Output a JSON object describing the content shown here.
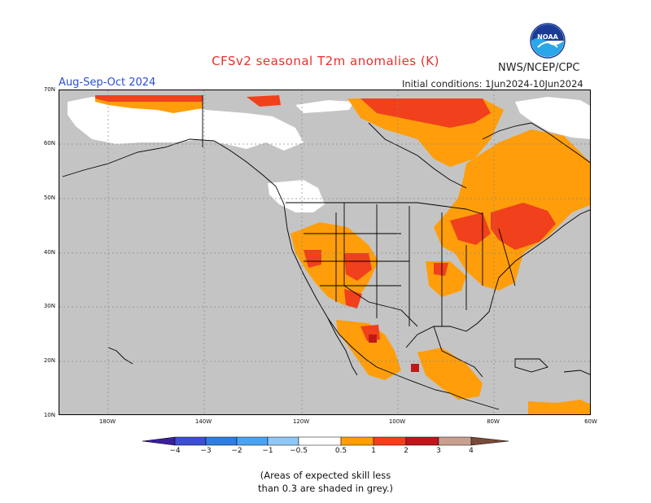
{
  "header": {
    "title": "CFSv2 seasonal T2m anomalies (K)",
    "agency": "NWS/NCEP/CPC",
    "season": "Aug-Sep-Oct 2024",
    "initial_conditions": "Initial conditions: 1Jun2024-10Jun2024",
    "logo_text": "NOAA"
  },
  "map": {
    "lat_labels": [
      "70N",
      "60N",
      "50N",
      "40N",
      "30N",
      "20N",
      "10N"
    ],
    "lon_labels": [
      "180W",
      "140W",
      "120W",
      "100W",
      "80W",
      "60W"
    ],
    "colors": {
      "grey_no_skill": "#c4c4c4",
      "ocean_unshaded": "#ffffff",
      "warm_0_5_1": "#ff9e0a",
      "warm_1_2": "#f0401c",
      "warm_2_3": "#c01818",
      "borders": "#000000"
    }
  },
  "colorbar": {
    "ticks": [
      "−4",
      "−3",
      "−2",
      "−1",
      "−0.5",
      "0.5",
      "1",
      "2",
      "3",
      "4"
    ],
    "colors": [
      "#3a1f9e",
      "#3b4fd0",
      "#2f7de0",
      "#4aa3f0",
      "#8ec8f8",
      "#ffffff",
      "#ff9e0a",
      "#f0401c",
      "#d42a1c",
      "#a81410",
      "#c8a090",
      "#7a4a38"
    ]
  },
  "footnote": "(Areas of expected skill less\nthan 0.3 are shaded in grey.)"
}
